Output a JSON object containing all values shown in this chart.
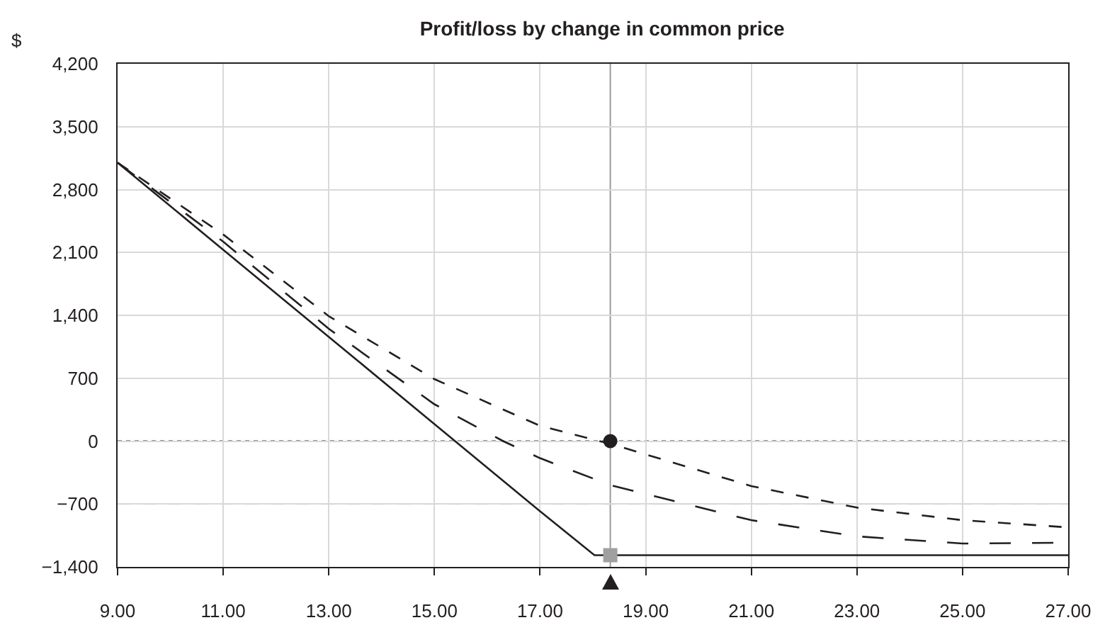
{
  "chart_data": {
    "type": "line",
    "title": "Profit/loss by change in common price",
    "ylabel": "$",
    "x": [
      9,
      11,
      13,
      15,
      17,
      18.03,
      19,
      21,
      23,
      25,
      27
    ],
    "series": [
      {
        "color": "#231f20",
        "line_style": "solid",
        "values": [
          3100,
          2130,
          1160,
          190,
          -780,
          -1270,
          -1270,
          -1270,
          -1270,
          -1270,
          -1270
        ]
      },
      {
        "color": "#231f20",
        "line_style": "dashed",
        "x": [
          9,
          11,
          13,
          15,
          16.3,
          17,
          18.33,
          21,
          23,
          25,
          27
        ],
        "values": [
          3100,
          2220,
          1250,
          410,
          0,
          -190,
          -490,
          -880,
          -1060,
          -1140,
          -1130
        ]
      },
      {
        "color": "#231f20",
        "line_style": "dashed",
        "x": [
          9,
          11,
          13,
          15,
          17,
          18.33,
          21,
          23,
          25,
          27
        ],
        "values": [
          3100,
          2300,
          1390,
          690,
          170,
          -30,
          -500,
          -740,
          -880,
          -960
        ]
      },
      {
        "type": "scatter",
        "marker": "circle",
        "color": "#231f20",
        "x": [
          18.33
        ],
        "values": [
          0
        ]
      },
      {
        "type": "scatter",
        "marker": "square",
        "color": "#a0a0a0",
        "x": [
          18.33
        ],
        "values": [
          -1270
        ]
      }
    ],
    "xlim": [
      9,
      27
    ],
    "ylim": [
      -1400,
      4200
    ],
    "xticks": [
      {
        "value": 9,
        "label": "9.00"
      },
      {
        "value": 11,
        "label": "11.00"
      },
      {
        "value": 13,
        "label": "13.00"
      },
      {
        "value": 15,
        "label": "15.00"
      },
      {
        "value": 17,
        "label": "17.00"
      },
      {
        "value": 19,
        "label": "19.00"
      },
      {
        "value": 21,
        "label": "21.00"
      },
      {
        "value": 23,
        "label": "23.00"
      },
      {
        "value": 25,
        "label": "25.00"
      },
      {
        "value": 27,
        "label": "27.00"
      }
    ],
    "yticks": [
      {
        "value": -1400,
        "label": "−1,400"
      },
      {
        "value": -700,
        "label": "−700"
      },
      0,
      {
        "value": 700,
        "label": "700"
      },
      {
        "value": 1400,
        "label": "1,400"
      },
      {
        "value": 2100,
        "label": "2,100"
      },
      {
        "value": 2800,
        "label": "2,800"
      },
      {
        "value": 3500,
        "label": "3,500"
      },
      {
        "value": 4200,
        "label": "4,200"
      }
    ],
    "ref_lines": [
      {
        "axis": "x",
        "value": 18.33,
        "color": "#9a9a9a",
        "line_style": "solid"
      },
      {
        "axis": "y",
        "value": 0,
        "color": "#231f20",
        "line_style": "dotted"
      },
      {
        "axis": "y",
        "value": -700,
        "color": "#d0d0d0",
        "line_style": "dashed"
      }
    ],
    "grid": true
  }
}
